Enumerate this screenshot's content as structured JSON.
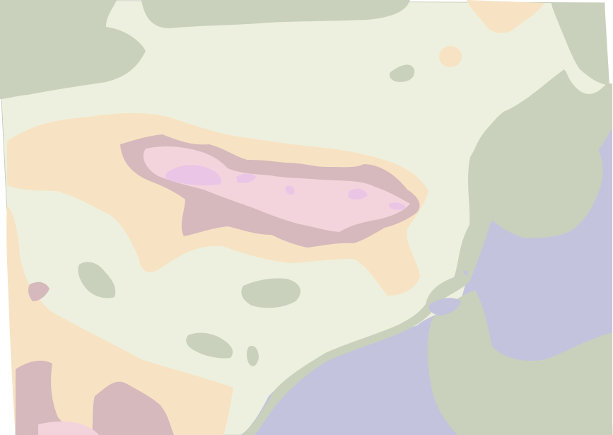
{
  "map": {
    "type": "elevation-contour",
    "labels": [],
    "palette": {
      "sea": "#c3c3dd",
      "coastal_low": "#c9d1bd",
      "plain": "#edf0de",
      "upland": "#f7e3c3",
      "highland": "#d5b9bd",
      "high_plateau": "#f3d4dd",
      "summit": "#eac5e6",
      "frame": "#ffffff"
    }
  }
}
